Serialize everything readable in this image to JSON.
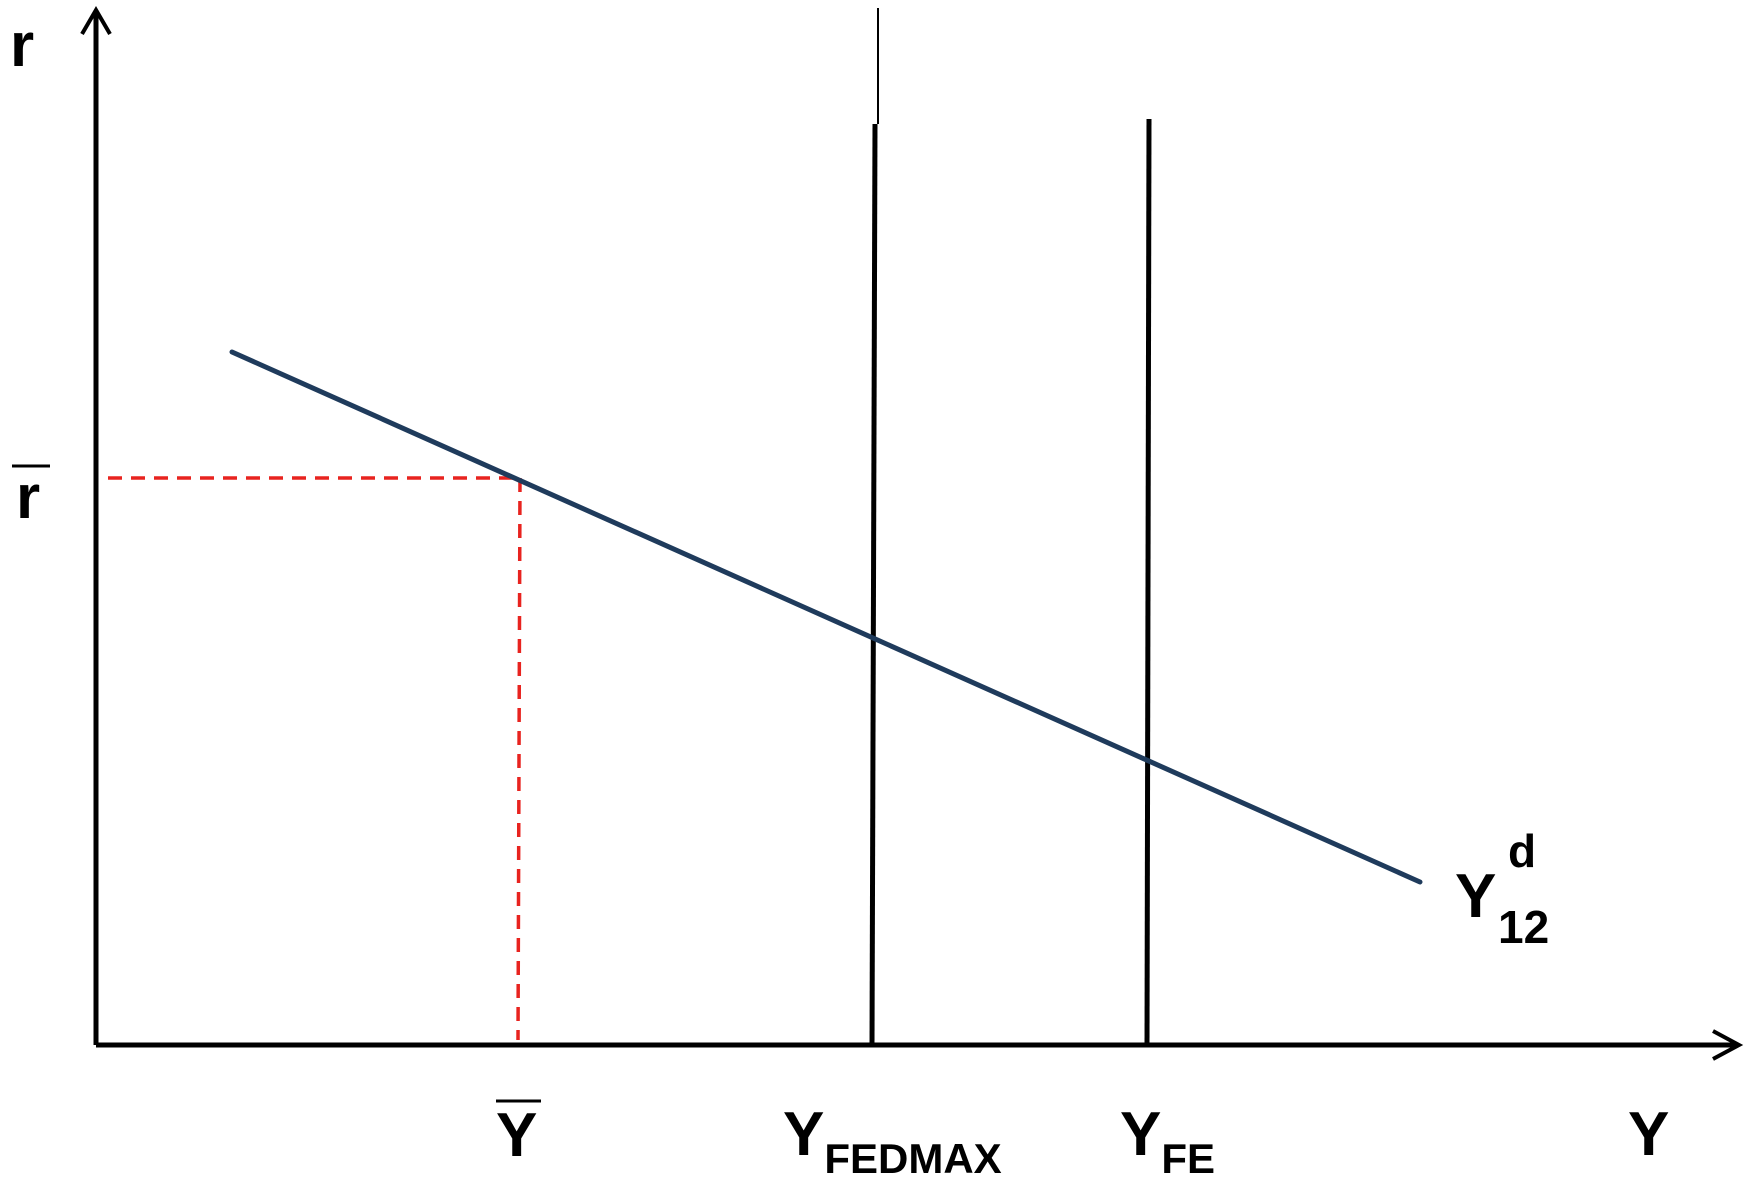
{
  "labels": {
    "y_axis": "r",
    "r_bar": "r",
    "x_axis": "Y",
    "y_bar": "Y",
    "y_fedmax_main": "Y",
    "y_fedmax_sub": "FEDMAX",
    "y_fe_main": "Y",
    "y_fe_sub": "FE",
    "demand_main": "Y",
    "demand_sup": "d",
    "demand_sub": "12"
  },
  "colors": {
    "axes": "#000000",
    "demand_curve": "#1f3b5c",
    "guide_lines": "#e8231f"
  }
}
